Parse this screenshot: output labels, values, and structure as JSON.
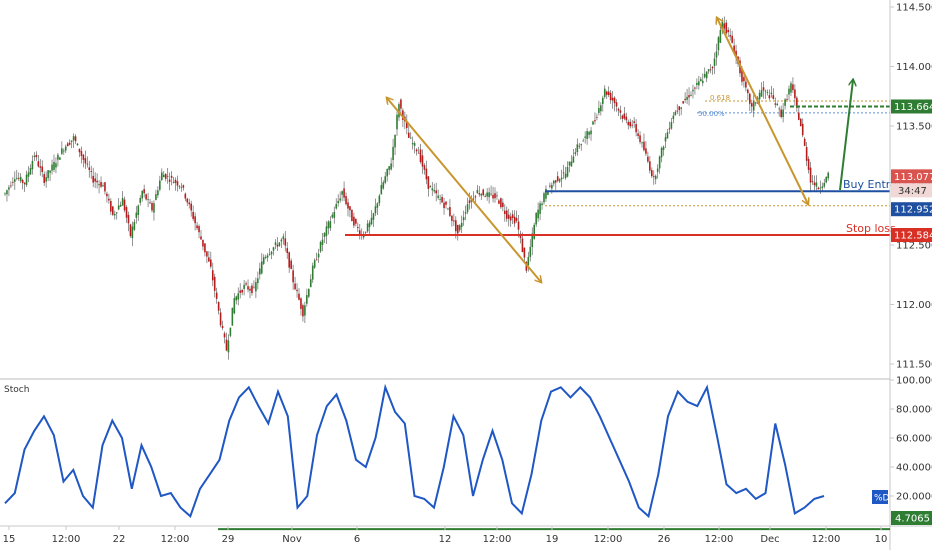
{
  "chart_data": [
    {
      "type": "candlestick",
      "title": "",
      "price_range": [
        111.45,
        114.55
      ],
      "y_ticks": [
        "114.500",
        "114.000",
        "113.500",
        "113.000",
        "112.500",
        "112.000",
        "111.500"
      ],
      "series_trace": [
        {
          "i": 0,
          "p": 112.93
        },
        {
          "i": 5,
          "p": 113.08
        },
        {
          "i": 10,
          "p": 113.02
        },
        {
          "i": 15,
          "p": 113.26
        },
        {
          "i": 20,
          "p": 113.05
        },
        {
          "i": 25,
          "p": 113.18
        },
        {
          "i": 30,
          "p": 113.32
        },
        {
          "i": 35,
          "p": 113.4
        },
        {
          "i": 40,
          "p": 113.22
        },
        {
          "i": 45,
          "p": 113.05
        },
        {
          "i": 50,
          "p": 113.0
        },
        {
          "i": 55,
          "p": 112.75
        },
        {
          "i": 60,
          "p": 112.88
        },
        {
          "i": 64,
          "p": 112.58
        },
        {
          "i": 70,
          "p": 112.95
        },
        {
          "i": 75,
          "p": 112.8
        },
        {
          "i": 80,
          "p": 113.1
        },
        {
          "i": 85,
          "p": 113.05
        },
        {
          "i": 90,
          "p": 113.0
        },
        {
          "i": 95,
          "p": 112.78
        },
        {
          "i": 100,
          "p": 112.55
        },
        {
          "i": 105,
          "p": 112.3
        },
        {
          "i": 110,
          "p": 111.85
        },
        {
          "i": 113,
          "p": 111.62
        },
        {
          "i": 117,
          "p": 112.05
        },
        {
          "i": 122,
          "p": 112.15
        },
        {
          "i": 127,
          "p": 112.12
        },
        {
          "i": 132,
          "p": 112.4
        },
        {
          "i": 137,
          "p": 112.48
        },
        {
          "i": 142,
          "p": 112.55
        },
        {
          "i": 147,
          "p": 112.2
        },
        {
          "i": 152,
          "p": 111.93
        },
        {
          "i": 157,
          "p": 112.3
        },
        {
          "i": 162,
          "p": 112.55
        },
        {
          "i": 167,
          "p": 112.75
        },
        {
          "i": 172,
          "p": 112.95
        },
        {
          "i": 177,
          "p": 112.72
        },
        {
          "i": 182,
          "p": 112.58
        },
        {
          "i": 187,
          "p": 112.7
        },
        {
          "i": 192,
          "p": 112.98
        },
        {
          "i": 197,
          "p": 113.2
        },
        {
          "i": 201,
          "p": 113.7
        },
        {
          "i": 206,
          "p": 113.4
        },
        {
          "i": 211,
          "p": 113.28
        },
        {
          "i": 216,
          "p": 113.0
        },
        {
          "i": 221,
          "p": 112.9
        },
        {
          "i": 226,
          "p": 112.8
        },
        {
          "i": 231,
          "p": 112.6
        },
        {
          "i": 236,
          "p": 112.85
        },
        {
          "i": 241,
          "p": 112.95
        },
        {
          "i": 246,
          "p": 112.92
        },
        {
          "i": 251,
          "p": 112.9
        },
        {
          "i": 256,
          "p": 112.75
        },
        {
          "i": 261,
          "p": 112.7
        },
        {
          "i": 266,
          "p": 112.3
        },
        {
          "i": 271,
          "p": 112.75
        },
        {
          "i": 276,
          "p": 112.95
        },
        {
          "i": 281,
          "p": 113.05
        },
        {
          "i": 286,
          "p": 113.1
        },
        {
          "i": 291,
          "p": 113.3
        },
        {
          "i": 296,
          "p": 113.4
        },
        {
          "i": 301,
          "p": 113.55
        },
        {
          "i": 306,
          "p": 113.8
        },
        {
          "i": 311,
          "p": 113.7
        },
        {
          "i": 316,
          "p": 113.55
        },
        {
          "i": 321,
          "p": 113.5
        },
        {
          "i": 326,
          "p": 113.3
        },
        {
          "i": 331,
          "p": 113.05
        },
        {
          "i": 336,
          "p": 113.35
        },
        {
          "i": 341,
          "p": 113.6
        },
        {
          "i": 346,
          "p": 113.7
        },
        {
          "i": 351,
          "p": 113.8
        },
        {
          "i": 356,
          "p": 113.9
        },
        {
          "i": 361,
          "p": 114.0
        },
        {
          "i": 366,
          "p": 114.38
        },
        {
          "i": 371,
          "p": 114.2
        },
        {
          "i": 376,
          "p": 113.9
        },
        {
          "i": 381,
          "p": 113.65
        },
        {
          "i": 386,
          "p": 113.8
        },
        {
          "i": 391,
          "p": 113.75
        },
        {
          "i": 396,
          "p": 113.6
        },
        {
          "i": 401,
          "p": 113.85
        },
        {
          "i": 406,
          "p": 113.5
        },
        {
          "i": 411,
          "p": 113.05
        },
        {
          "i": 415,
          "p": 112.98
        },
        {
          "i": 420,
          "p": 113.08
        }
      ],
      "lines": {
        "buy_entry": {
          "label": "Buy Entry",
          "price": 112.952,
          "color": "#1e4fa0"
        },
        "stop_loss": {
          "label": "Stop loss",
          "price": 112.584,
          "color": "#d93025"
        },
        "take_profit": {
          "price": 113.664,
          "color": "#2e7d32"
        },
        "fib_618": {
          "label": "0.618",
          "price": 113.71,
          "color": "#c8962e"
        },
        "fib_50": {
          "label": "50.00%",
          "price": 113.61,
          "color": "#5c8fd6"
        },
        "lower_fib": {
          "price": 112.83,
          "color": "#c8962e"
        }
      },
      "price_labels": {
        "current": {
          "text": "113.077",
          "countdown": "34:47",
          "color": "#d9534f"
        },
        "take_profit": {
          "text": "113.664",
          "color": "#2e7d32"
        },
        "buy_entry": {
          "text": "112.952",
          "color": "#1e4fa0"
        },
        "stop_loss": {
          "text": "112.584",
          "color": "#d93025"
        }
      }
    },
    {
      "type": "line",
      "title": "Stoch",
      "name": "Stoch",
      "y_range": [
        0,
        100
      ],
      "y_ticks": [
        "100.0000",
        "80.0000",
        "60.0000",
        "40.0000",
        "20.0000"
      ],
      "series": [
        {
          "name": "%D",
          "color": "#1f57c4",
          "values": [
            {
              "i": 0,
              "v": 15
            },
            {
              "i": 6,
              "v": 22
            },
            {
              "i": 12,
              "v": 52
            },
            {
              "i": 18,
              "v": 65
            },
            {
              "i": 24,
              "v": 75
            },
            {
              "i": 30,
              "v": 62
            },
            {
              "i": 36,
              "v": 30
            },
            {
              "i": 42,
              "v": 38
            },
            {
              "i": 48,
              "v": 20
            },
            {
              "i": 54,
              "v": 12
            },
            {
              "i": 60,
              "v": 55
            },
            {
              "i": 66,
              "v": 72
            },
            {
              "i": 72,
              "v": 60
            },
            {
              "i": 78,
              "v": 25
            },
            {
              "i": 84,
              "v": 55
            },
            {
              "i": 90,
              "v": 40
            },
            {
              "i": 96,
              "v": 20
            },
            {
              "i": 102,
              "v": 22
            },
            {
              "i": 108,
              "v": 12
            },
            {
              "i": 114,
              "v": 6
            },
            {
              "i": 120,
              "v": 25
            },
            {
              "i": 126,
              "v": 35
            },
            {
              "i": 132,
              "v": 45
            },
            {
              "i": 138,
              "v": 72
            },
            {
              "i": 144,
              "v": 88
            },
            {
              "i": 150,
              "v": 95
            },
            {
              "i": 156,
              "v": 82
            },
            {
              "i": 162,
              "v": 70
            },
            {
              "i": 168,
              "v": 92
            },
            {
              "i": 174,
              "v": 75
            },
            {
              "i": 180,
              "v": 12
            },
            {
              "i": 186,
              "v": 20
            },
            {
              "i": 192,
              "v": 62
            },
            {
              "i": 198,
              "v": 82
            },
            {
              "i": 204,
              "v": 90
            },
            {
              "i": 210,
              "v": 72
            },
            {
              "i": 216,
              "v": 45
            },
            {
              "i": 222,
              "v": 40
            },
            {
              "i": 228,
              "v": 60
            },
            {
              "i": 234,
              "v": 95
            },
            {
              "i": 240,
              "v": 78
            },
            {
              "i": 246,
              "v": 70
            },
            {
              "i": 252,
              "v": 20
            },
            {
              "i": 258,
              "v": 18
            },
            {
              "i": 264,
              "v": 12
            },
            {
              "i": 270,
              "v": 40
            },
            {
              "i": 276,
              "v": 75
            },
            {
              "i": 282,
              "v": 62
            },
            {
              "i": 288,
              "v": 20
            },
            {
              "i": 294,
              "v": 45
            },
            {
              "i": 300,
              "v": 65
            },
            {
              "i": 306,
              "v": 45
            },
            {
              "i": 312,
              "v": 15
            },
            {
              "i": 318,
              "v": 8
            },
            {
              "i": 324,
              "v": 35
            },
            {
              "i": 330,
              "v": 72
            },
            {
              "i": 336,
              "v": 92
            },
            {
              "i": 342,
              "v": 95
            },
            {
              "i": 348,
              "v": 88
            },
            {
              "i": 354,
              "v": 95
            },
            {
              "i": 360,
              "v": 88
            },
            {
              "i": 366,
              "v": 75
            },
            {
              "i": 372,
              "v": 60
            },
            {
              "i": 378,
              "v": 45
            },
            {
              "i": 384,
              "v": 30
            },
            {
              "i": 390,
              "v": 12
            },
            {
              "i": 396,
              "v": 6
            },
            {
              "i": 402,
              "v": 35
            },
            {
              "i": 408,
              "v": 75
            },
            {
              "i": 414,
              "v": 92
            },
            {
              "i": 420,
              "v": 85
            },
            {
              "i": 426,
              "v": 82
            },
            {
              "i": 432,
              "v": 95
            },
            {
              "i": 438,
              "v": 62
            },
            {
              "i": 444,
              "v": 28
            },
            {
              "i": 450,
              "v": 22
            },
            {
              "i": 456,
              "v": 25
            },
            {
              "i": 462,
              "v": 18
            },
            {
              "i": 468,
              "v": 22
            },
            {
              "i": 474,
              "v": 70
            },
            {
              "i": 480,
              "v": 42
            },
            {
              "i": 486,
              "v": 8
            },
            {
              "i": 492,
              "v": 12
            },
            {
              "i": 498,
              "v": 18
            },
            {
              "i": 504,
              "v": 20
            }
          ]
        }
      ],
      "level_line": {
        "value": 4.7065,
        "label": "4.7065",
        "color": "#2e7d32"
      },
      "series_label": {
        "text": "%D",
        "color": "#1f57c4"
      }
    }
  ],
  "x_ticks": [
    "15",
    "12:00",
    "22",
    "12:00",
    "29",
    "Nov",
    "6",
    "12",
    "12:00",
    "19",
    "12:00",
    "26",
    "12:00",
    "Dec",
    "12:00",
    "10"
  ]
}
